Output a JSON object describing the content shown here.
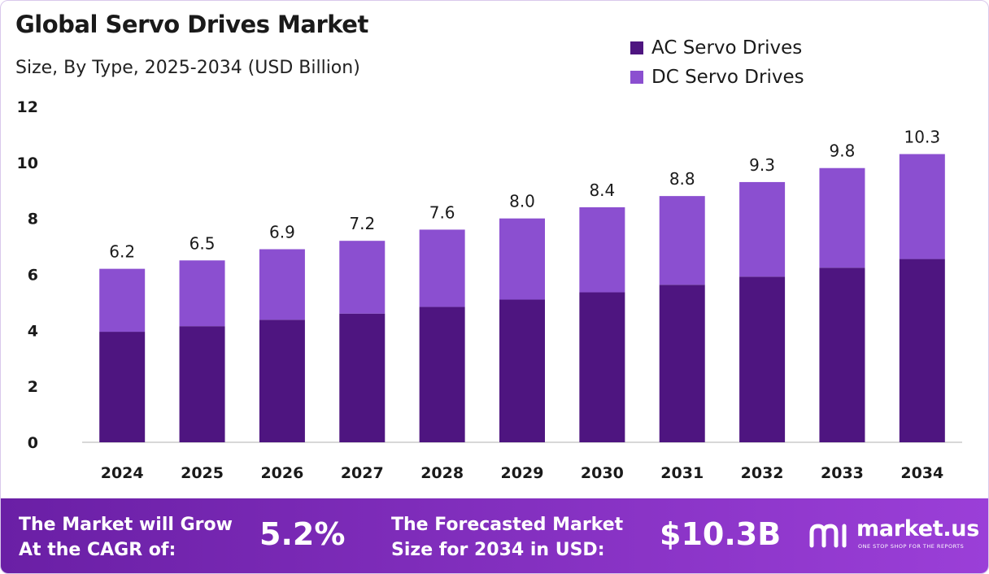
{
  "header": {
    "title": "Global Servo Drives Market",
    "subtitle": "Size, By Type, 2025-2034 (USD Billion)"
  },
  "colors": {
    "ac": "#4e1580",
    "dc": "#8b4fd0",
    "banner_start": "#6a1fa5",
    "banner_end": "#9b3fd8"
  },
  "chart_data": {
    "type": "bar",
    "stacked": true,
    "categories": [
      "2024",
      "2025",
      "2026",
      "2027",
      "2028",
      "2029",
      "2030",
      "2031",
      "2032",
      "2033",
      "2034"
    ],
    "series": [
      {
        "name": "AC Servo Drives",
        "values": [
          3.95,
          4.15,
          4.38,
          4.6,
          4.84,
          5.1,
          5.36,
          5.63,
          5.92,
          6.24,
          6.55
        ]
      },
      {
        "name": "DC Servo Drives",
        "values": [
          2.25,
          2.35,
          2.52,
          2.6,
          2.76,
          2.9,
          3.04,
          3.17,
          3.38,
          3.56,
          3.75
        ]
      }
    ],
    "totals": [
      "6.2",
      "6.5",
      "6.9",
      "7.2",
      "7.6",
      "8.0",
      "8.4",
      "8.8",
      "9.3",
      "9.8",
      "10.3"
    ],
    "yticks": [
      "0",
      "2",
      "4",
      "6",
      "8",
      "10",
      "12"
    ],
    "ylim": [
      0,
      12
    ],
    "legend_position": "top-right",
    "grid": false
  },
  "banner": {
    "cagr_label": "The Market will Grow\nAt the CAGR of:",
    "cagr_value": "5.2%",
    "forecast_label": "The Forecasted Market\nSize for 2034 in USD:",
    "forecast_value": "$10.3B",
    "brand_name": "market.us",
    "brand_tagline": "ONE STOP SHOP FOR THE REPORTS",
    "brand_icon": "market-us-logo-icon"
  }
}
